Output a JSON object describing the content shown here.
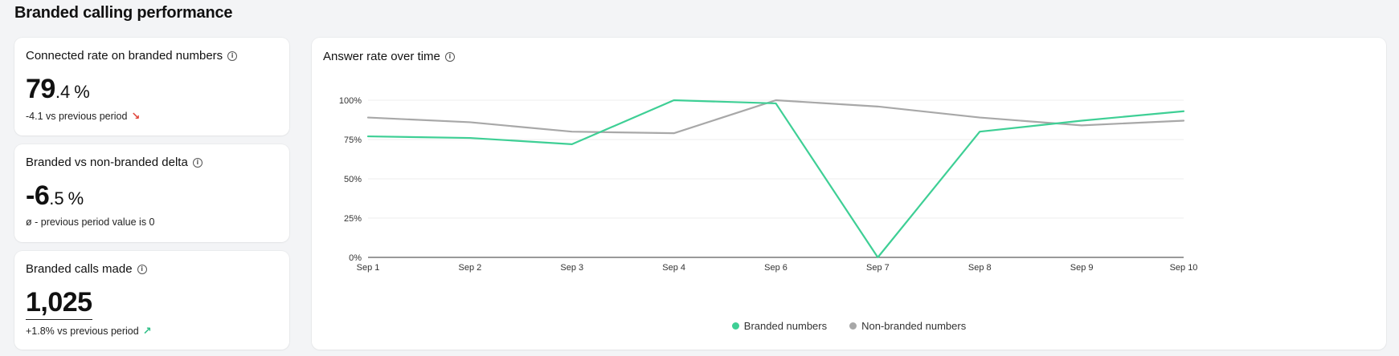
{
  "section": {
    "title": "Branded calling performance"
  },
  "cards": {
    "connected": {
      "title": "Connected rate on branded numbers",
      "value_int": "79",
      "value_dec": ".4",
      "unit": "%",
      "sub": "-4.1 vs previous period",
      "trend": "down"
    },
    "delta": {
      "title": "Branded vs non-branded delta",
      "value_int": "-6",
      "value_dec": ".5",
      "unit": "%",
      "sub": "ø - previous period value is 0"
    },
    "calls": {
      "title": "Branded calls made",
      "value": "1,025",
      "sub": "+1.8% vs previous period",
      "trend": "up"
    }
  },
  "chart_data": {
    "type": "line",
    "title": "Answer rate over time",
    "categories": [
      "Sep 1",
      "Sep 2",
      "Sep 3",
      "Sep 4",
      "Sep 6",
      "Sep 7",
      "Sep 8",
      "Sep 9",
      "Sep 10"
    ],
    "y_ticks": [
      "0%",
      "25%",
      "50%",
      "75%",
      "100%"
    ],
    "ylim": [
      0,
      100
    ],
    "grid": true,
    "legend_position": "bottom",
    "series": [
      {
        "name": "Branded numbers",
        "color": "#3ecf95",
        "values": [
          77,
          76,
          72,
          100,
          98,
          0,
          80,
          87,
          93
        ]
      },
      {
        "name": "Non-branded numbers",
        "color": "#a8a8a8",
        "values": [
          89,
          86,
          80,
          79,
          100,
          96,
          89,
          84,
          87
        ]
      }
    ]
  }
}
